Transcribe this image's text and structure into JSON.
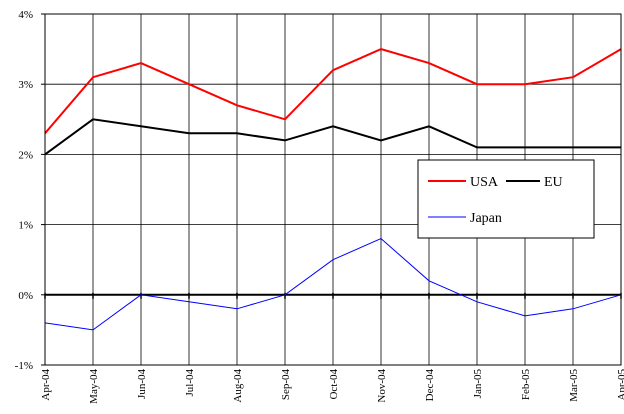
{
  "chart_data": {
    "type": "line",
    "title": "",
    "xlabel": "",
    "ylabel": "",
    "categories": [
      "Apr-04",
      "May-04",
      "Jun-04",
      "Jul-04",
      "Aug-04",
      "Sep-04",
      "Oct-04",
      "Nov-04",
      "Dec-04",
      "Jan-05",
      "Feb-05",
      "Mar-05",
      "Apr-05"
    ],
    "ylim": [
      -1,
      4
    ],
    "yticks": [
      -1,
      0,
      1,
      2,
      3,
      4
    ],
    "ytick_labels": [
      "-1%",
      "0%",
      "1%",
      "2%",
      "3%",
      "4%"
    ],
    "grid": true,
    "legend": "right",
    "series": [
      {
        "name": "USA",
        "color": "#ff0000",
        "values": [
          2.3,
          3.1,
          3.3,
          3.0,
          2.7,
          2.5,
          3.2,
          3.5,
          3.3,
          3.0,
          3.0,
          3.1,
          3.5
        ]
      },
      {
        "name": "EU",
        "color": "#000000",
        "values": [
          2.0,
          2.5,
          2.4,
          2.3,
          2.3,
          2.2,
          2.4,
          2.2,
          2.4,
          2.1,
          2.1,
          2.1,
          2.1
        ]
      },
      {
        "name": "Japan",
        "color": "#0000ff",
        "values": [
          -0.4,
          -0.5,
          0.0,
          -0.1,
          -0.2,
          0.0,
          0.5,
          0.8,
          0.2,
          -0.1,
          -0.3,
          -0.2,
          0.0
        ]
      }
    ]
  }
}
